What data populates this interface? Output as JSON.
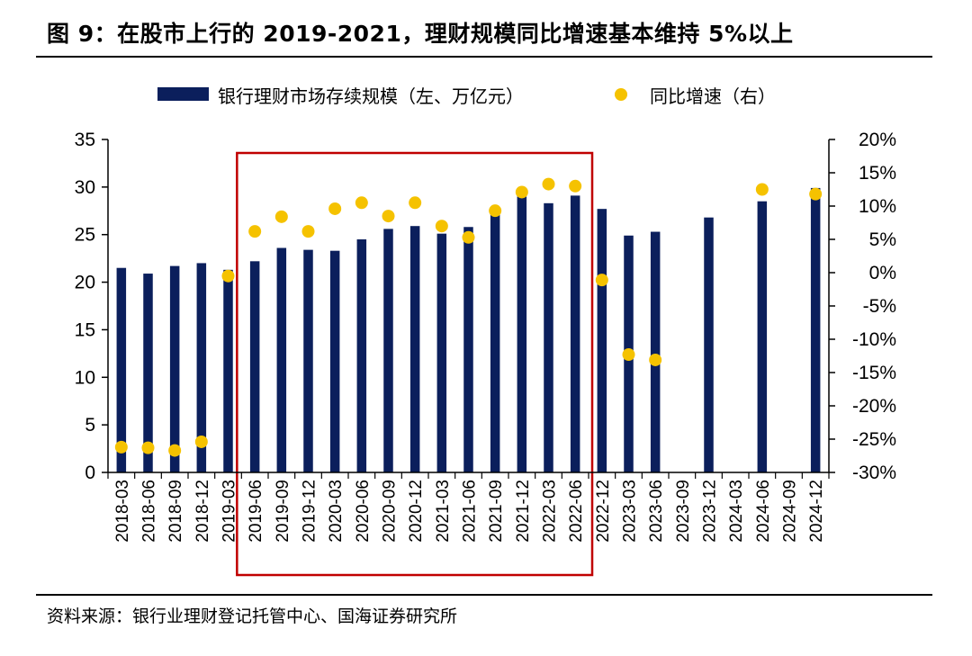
{
  "figure": {
    "title": "图 9：在股市上行的 2019-2021，理财规模同比增速基本维持 5%以上",
    "source": "资料来源：银行业理财登记托管中心、国海证券研究所"
  },
  "colors": {
    "bar": "#0b1f5c",
    "dot": "#f5c200",
    "highlight_box": "#c00000",
    "axis": "#000000"
  },
  "chart_data": {
    "type": "bar",
    "categories": [
      "2018-03",
      "2018-06",
      "2018-09",
      "2018-12",
      "2019-03",
      "2019-06",
      "2019-09",
      "2019-12",
      "2020-03",
      "2020-06",
      "2020-09",
      "2020-12",
      "2021-03",
      "2021-06",
      "2021-09",
      "2021-12",
      "2022-03",
      "2022-06",
      "2022-12",
      "2023-03",
      "2023-06",
      "2023-09",
      "2023-12",
      "2024-03",
      "2024-06",
      "2024-09",
      "2024-12"
    ],
    "series": [
      {
        "name": "银行理财市场存续规模（左、万亿元）",
        "axis": "left",
        "kind": "bar",
        "values": [
          21.5,
          20.9,
          21.7,
          22.0,
          21.3,
          22.2,
          23.6,
          23.4,
          23.3,
          24.5,
          25.6,
          25.9,
          25.1,
          25.8,
          27.2,
          29.0,
          28.3,
          29.1,
          27.7,
          24.9,
          25.3,
          null,
          26.8,
          null,
          28.5,
          null,
          29.9
        ]
      },
      {
        "name": "同比增速（右）",
        "axis": "right",
        "kind": "scatter",
        "values": [
          -26.2,
          -26.3,
          -26.7,
          -25.4,
          -0.5,
          6.2,
          8.4,
          6.2,
          9.6,
          10.5,
          8.5,
          10.5,
          7.0,
          5.3,
          9.3,
          12.1,
          13.3,
          13.0,
          -1.1,
          -12.3,
          -13.1,
          null,
          null,
          null,
          12.5,
          null,
          11.8
        ]
      }
    ],
    "y_left": {
      "min": 0,
      "max": 35,
      "ticks": [
        0,
        5,
        10,
        15,
        20,
        25,
        30,
        35
      ],
      "labels": [
        "0",
        "5",
        "10",
        "15",
        "20",
        "25",
        "30",
        "35"
      ]
    },
    "y_right": {
      "min": -30,
      "max": 20,
      "ticks": [
        20,
        15,
        10,
        5,
        0,
        -5,
        -10,
        -15,
        -20,
        -25,
        -30
      ],
      "labels": [
        "20%",
        "15%",
        "10%",
        "5%",
        "0%",
        "-5%",
        "-10%",
        "-15%",
        "-20%",
        "-25%",
        "-30%"
      ]
    },
    "highlight_range": [
      "2019-06",
      "2022-06"
    ],
    "legend_position": "top-center",
    "grid": false
  }
}
